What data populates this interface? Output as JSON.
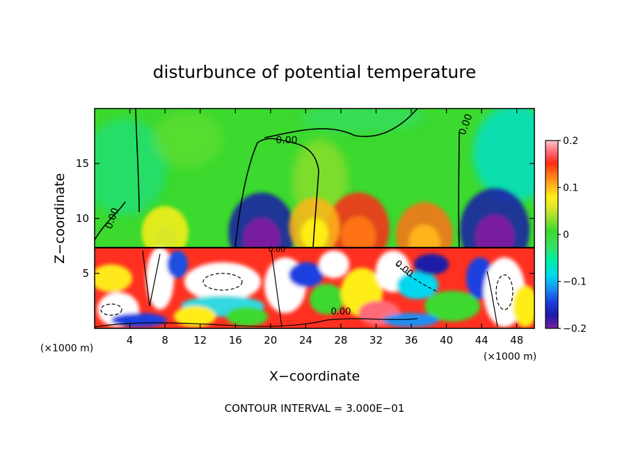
{
  "chart_data": {
    "type": "heatmap",
    "title": "disturbunce of potential temperature",
    "xlabel": "X−coordinate",
    "ylabel": "Z−coordinate",
    "x_unit_left": "(×1000 m)",
    "x_unit_right": "(×1000 m)",
    "footer": "CONTOUR INTERVAL = 3.000E−01",
    "xlim": [
      0,
      50
    ],
    "ylim": [
      0,
      20
    ],
    "x_ticks": [
      4,
      8,
      12,
      16,
      20,
      24,
      28,
      32,
      36,
      40,
      44,
      48
    ],
    "x_tick_labels": [
      "4",
      "8",
      "12",
      "16",
      "20",
      "24",
      "28",
      "32",
      "36",
      "40",
      "44",
      "48"
    ],
    "y_ticks": [
      5,
      10,
      15
    ],
    "y_tick_labels": [
      "5",
      "10",
      "15"
    ],
    "colorbar": {
      "range": [
        -0.2,
        0.2
      ],
      "ticks": [
        0.2,
        0.1,
        0,
        -0.1,
        -0.2
      ],
      "tick_labels": [
        "0.2",
        "0.1",
        "0",
        "−0.1",
        "−0.2"
      ]
    },
    "contour_labels": [
      "0.00",
      "0.00",
      "0.00",
      "0.00",
      "0.00",
      "0.00"
    ],
    "anomalies_upper": [
      {
        "x": 19.0,
        "z": 9.0,
        "value": -0.18
      },
      {
        "x": 30.0,
        "z": 9.3,
        "value": 0.15
      },
      {
        "x": 45.5,
        "z": 9.2,
        "value": -0.2
      },
      {
        "x": 37.5,
        "z": 8.7,
        "value": 0.12
      },
      {
        "x": 25.0,
        "z": 9.5,
        "value": 0.08
      },
      {
        "x": 8.0,
        "z": 9.0,
        "value": 0.05
      }
    ]
  }
}
